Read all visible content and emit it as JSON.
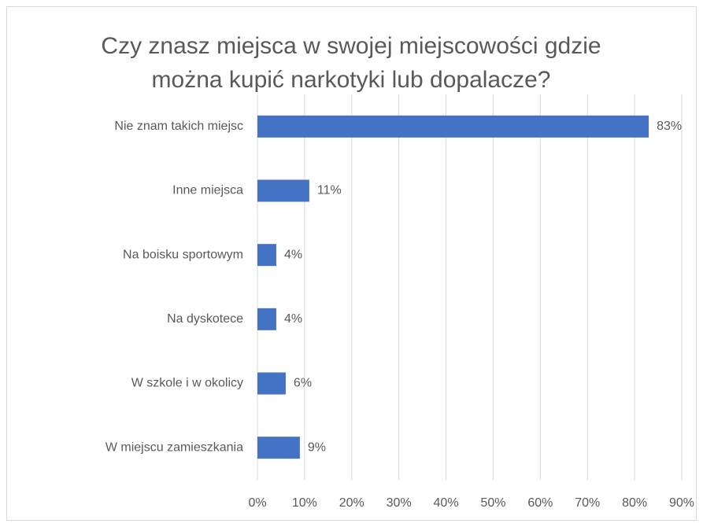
{
  "chart_data": {
    "type": "hbar",
    "title": [
      "Czy znasz miejsca w swojej miejscowości gdzie",
      "można kupić narkotyki lub dopalacze?"
    ],
    "categories": [
      "Nie znam takich miejsc",
      "Inne miejsca",
      "Na boisku sportowym",
      "Na dyskotece",
      "W szkole i w okolicy",
      "W miejscu zamieszkania"
    ],
    "values": [
      83,
      11,
      4,
      4,
      6,
      9
    ],
    "value_labels": [
      "83%",
      "11%",
      "4%",
      "4%",
      "6%",
      "9%"
    ],
    "color": "#4472c4",
    "xlim": [
      0,
      90
    ],
    "xticks": [
      {
        "value": 0,
        "label": "0%"
      },
      {
        "value": 10,
        "label": "10%"
      },
      {
        "value": 20,
        "label": "20%"
      },
      {
        "value": 30,
        "label": "30%"
      },
      {
        "value": 40,
        "label": "40%"
      },
      {
        "value": 50,
        "label": "50%"
      },
      {
        "value": 60,
        "label": "60%"
      },
      {
        "value": 70,
        "label": "70%"
      },
      {
        "value": 80,
        "label": "80%"
      },
      {
        "value": 90,
        "label": "90%"
      }
    ],
    "grid": true
  }
}
